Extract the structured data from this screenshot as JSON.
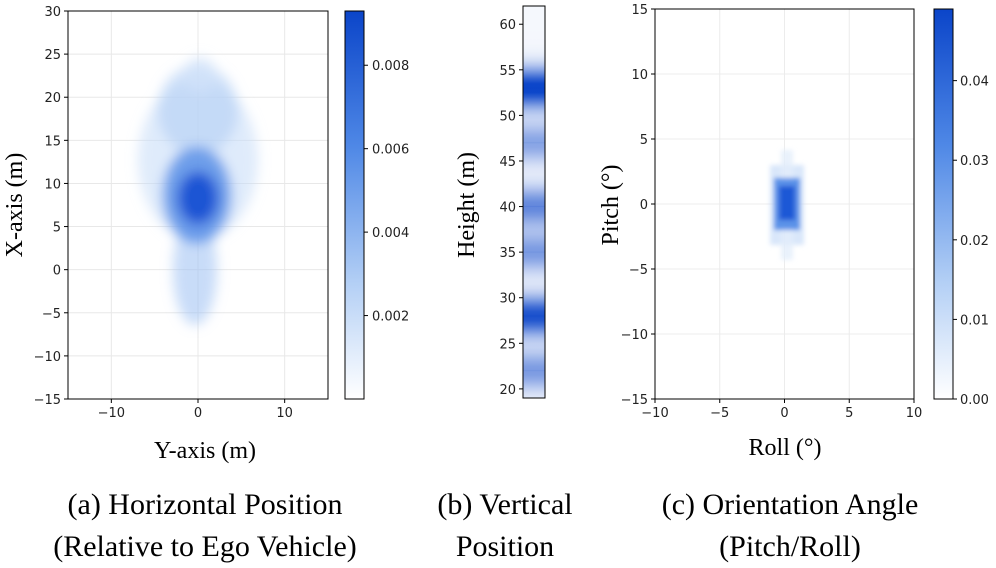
{
  "chart_data": [
    {
      "type": "heatmap",
      "title": "Horizontal Position (Relative to Ego Vehicle)",
      "xlabel": "Y-axis (m)",
      "ylabel": "X-axis (m)",
      "xlim": [
        -15,
        15
      ],
      "ylim": [
        -15,
        30
      ],
      "xticks": [
        "−10",
        "0",
        "10"
      ],
      "yticks": [
        "−15",
        "−10",
        "−5",
        "0",
        "5",
        "10",
        "15",
        "20",
        "25",
        "30"
      ],
      "colorbar": {
        "min": 0,
        "max": 0.0093,
        "ticks": [
          "0.002",
          "0.004",
          "0.006",
          "0.008"
        ]
      },
      "peak": {
        "x": 0,
        "y": 8,
        "value": 0.0093
      },
      "grid": true
    },
    {
      "type": "heatmap",
      "title": "Vertical Position",
      "ylabel": "Height (m)",
      "ylim": [
        19,
        62
      ],
      "yticks": [
        "20",
        "25",
        "30",
        "35",
        "40",
        "45",
        "50",
        "55",
        "60"
      ],
      "bands": [
        {
          "height": 53,
          "intensity": 1.0
        },
        {
          "height": 28,
          "intensity": 0.9
        },
        {
          "height": 40,
          "intensity": 0.6
        },
        {
          "height": 35,
          "intensity": 0.5
        },
        {
          "height": 47,
          "intensity": 0.45
        },
        {
          "height": 22,
          "intensity": 0.5
        }
      ]
    },
    {
      "type": "heatmap",
      "title": "Orientation Angle (Pitch/Roll)",
      "xlabel": "Roll (°)",
      "ylabel": "Pitch (°)",
      "xlim": [
        -10,
        10
      ],
      "ylim": [
        -15,
        15
      ],
      "xticks": [
        "−10",
        "−5",
        "0",
        "5",
        "10"
      ],
      "yticks": [
        "−15",
        "−10",
        "−5",
        "0",
        "5",
        "10",
        "15"
      ],
      "colorbar": {
        "min": 0,
        "max": 0.049,
        "ticks": [
          "0.00",
          "0.01",
          "0.02",
          "0.03",
          "0.04"
        ]
      },
      "peak": {
        "x": 0,
        "y": 0,
        "value": 0.049
      },
      "grid": true
    }
  ],
  "captions": {
    "a_line1": "(a) Horizontal Position",
    "a_line2": "(Relative to Ego Vehicle)",
    "b_line1": "(b) Vertical",
    "b_line2": "Position",
    "c_line1": "(c) Orientation Angle",
    "c_line2": "(Pitch/Roll)"
  },
  "colors": {
    "peak": "#0b45c9",
    "low": "#ffffff",
    "axis": "#000000"
  }
}
